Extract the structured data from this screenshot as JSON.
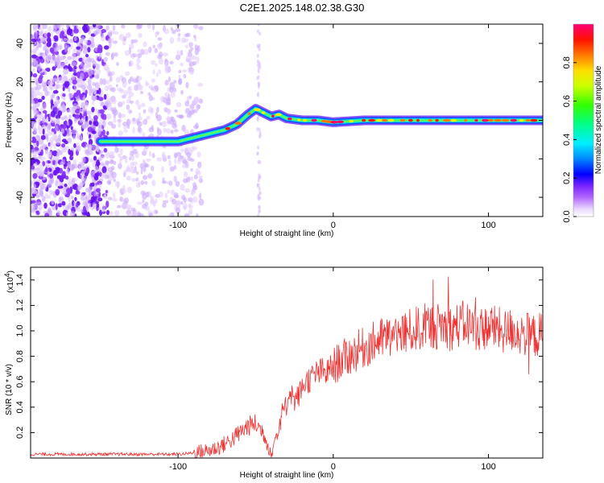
{
  "title": "C2E1.2025.148.02.38.G30",
  "chart_data": [
    {
      "type": "heatmap",
      "xlabel": "Height of straight line (km)",
      "ylabel": "Frequency (Hz)",
      "xlim": [
        -195,
        135
      ],
      "ylim": [
        -50,
        50
      ],
      "xticks": [
        -100,
        0,
        100
      ],
      "yticks": [
        -40,
        -20,
        0,
        20,
        40
      ],
      "colorbar": {
        "label": "Normalized spectral amplitude",
        "range": [
          0.0,
          1.0
        ],
        "ticks": [
          0.0,
          0.2,
          0.4,
          0.6,
          0.8
        ],
        "colors": [
          "#ffffff",
          "#cc99ff",
          "#9933ff",
          "#5500ff",
          "#0000ff",
          "#0099ff",
          "#00ffff",
          "#00ff66",
          "#33ff00",
          "#ccff00",
          "#ffff00",
          "#ffcc00",
          "#ff6600",
          "#ff0000",
          "#ff0066"
        ]
      },
      "ridge": [
        [
          -150,
          -11
        ],
        [
          -130,
          -11
        ],
        [
          -115,
          -11
        ],
        [
          -100,
          -11
        ],
        [
          -90,
          -9
        ],
        [
          -80,
          -7
        ],
        [
          -70,
          -5
        ],
        [
          -62,
          -2
        ],
        [
          -55,
          3
        ],
        [
          -50,
          6
        ],
        [
          -45,
          4
        ],
        [
          -40,
          2
        ],
        [
          -35,
          3
        ],
        [
          -30,
          1
        ],
        [
          -20,
          0
        ],
        [
          -10,
          0
        ],
        [
          0,
          -1
        ],
        [
          20,
          0
        ],
        [
          40,
          0
        ],
        [
          60,
          0
        ],
        [
          80,
          0
        ],
        [
          100,
          0
        ],
        [
          120,
          0
        ],
        [
          135,
          0
        ]
      ]
    },
    {
      "type": "line",
      "xlabel": "Height of straight line (km)",
      "ylabel": "SNR (10 * v/v)",
      "yscale_label": "(x10",
      "yscale_exp": "4",
      "xlim": [
        -195,
        135
      ],
      "ylim": [
        0,
        1.5
      ],
      "xticks": [
        -100,
        0,
        100
      ],
      "yticks": [
        0.2,
        0.4,
        0.6,
        0.8,
        1.0,
        1.2,
        1.4
      ],
      "series": [
        {
          "color": "#ee3333",
          "x": [
            -195,
            -180,
            -160,
            -140,
            -120,
            -100,
            -90,
            -80,
            -75,
            -70,
            -65,
            -60,
            -55,
            -50,
            -45,
            -42,
            -40,
            -38,
            -35,
            -33,
            -30,
            -28,
            -25,
            -22,
            -20,
            -18,
            -15,
            -12,
            -10,
            -7,
            -5,
            -2,
            0,
            5,
            10,
            15,
            20,
            25,
            30,
            35,
            40,
            45,
            50,
            55,
            60,
            65,
            70,
            75,
            80,
            85,
            90,
            95,
            100,
            105,
            110,
            115,
            120,
            125,
            130,
            135
          ],
          "y": [
            0.03,
            0.03,
            0.03,
            0.03,
            0.03,
            0.03,
            0.04,
            0.06,
            0.08,
            0.11,
            0.15,
            0.2,
            0.25,
            0.27,
            0.2,
            0.1,
            0.05,
            0.12,
            0.25,
            0.35,
            0.42,
            0.55,
            0.45,
            0.5,
            0.55,
            0.6,
            0.62,
            0.65,
            0.67,
            0.68,
            0.66,
            0.7,
            0.72,
            0.77,
            0.8,
            0.84,
            0.87,
            0.9,
            0.93,
            0.95,
            0.96,
            0.98,
            1.0,
            1.02,
            1.04,
            1.03,
            1.05,
            1.02,
            1.04,
            1.06,
            1.03,
            1.01,
            1.04,
            1.02,
            0.99,
            1.01,
            0.98,
            0.97,
            0.96,
            0.98
          ]
        }
      ]
    }
  ]
}
